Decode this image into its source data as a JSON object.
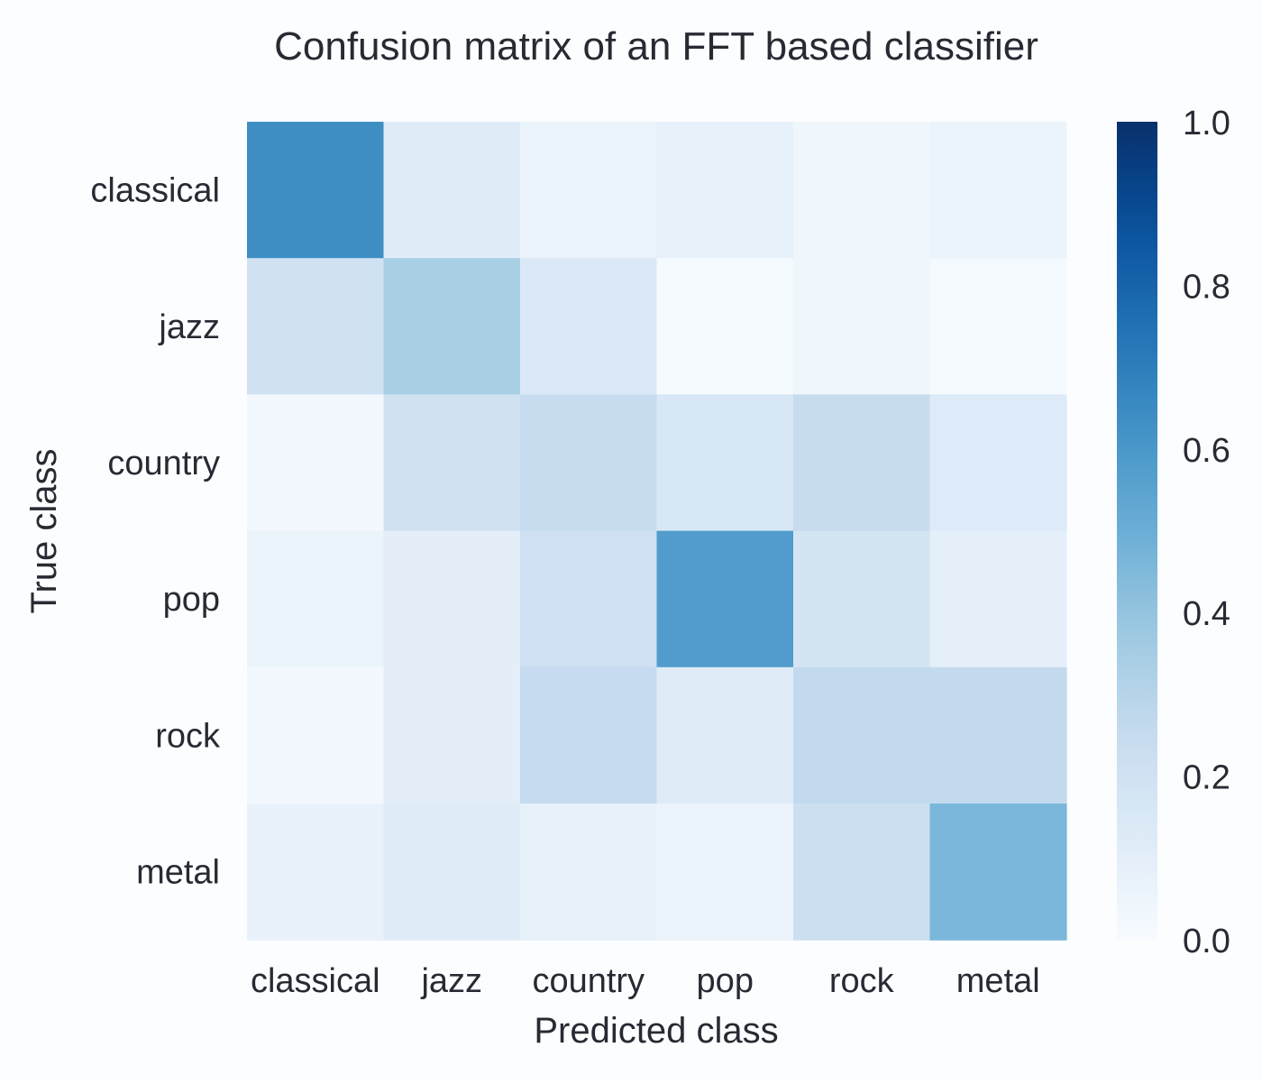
{
  "chart_data": {
    "type": "heatmap",
    "title": "Confusion matrix of an FFT based classifier",
    "xlabel": "Predicted class",
    "ylabel": "True class",
    "x_categories": [
      "classical",
      "jazz",
      "country",
      "pop",
      "rock",
      "metal"
    ],
    "y_categories": [
      "classical",
      "jazz",
      "country",
      "pop",
      "rock",
      "metal"
    ],
    "values": [
      [
        0.64,
        0.12,
        0.06,
        0.08,
        0.04,
        0.06
      ],
      [
        0.2,
        0.34,
        0.14,
        0.01,
        0.04,
        0.01
      ],
      [
        0.02,
        0.2,
        0.24,
        0.16,
        0.24,
        0.13
      ],
      [
        0.06,
        0.1,
        0.21,
        0.58,
        0.18,
        0.09
      ],
      [
        0.02,
        0.1,
        0.25,
        0.12,
        0.26,
        0.26
      ],
      [
        0.07,
        0.12,
        0.08,
        0.06,
        0.22,
        0.46
      ]
    ],
    "colorbar": {
      "min": 0.0,
      "max": 1.0,
      "ticks": [
        0.0,
        0.2,
        0.4,
        0.6,
        0.8,
        1.0
      ],
      "tick_labels": [
        "0.0",
        "0.2",
        "0.4",
        "0.6",
        "0.8",
        "1.0"
      ],
      "colormap": "Blues"
    },
    "grid": false,
    "legend": "colorbar-right"
  },
  "colors": {
    "background": "#fcfdff",
    "text": "#262b33"
  }
}
